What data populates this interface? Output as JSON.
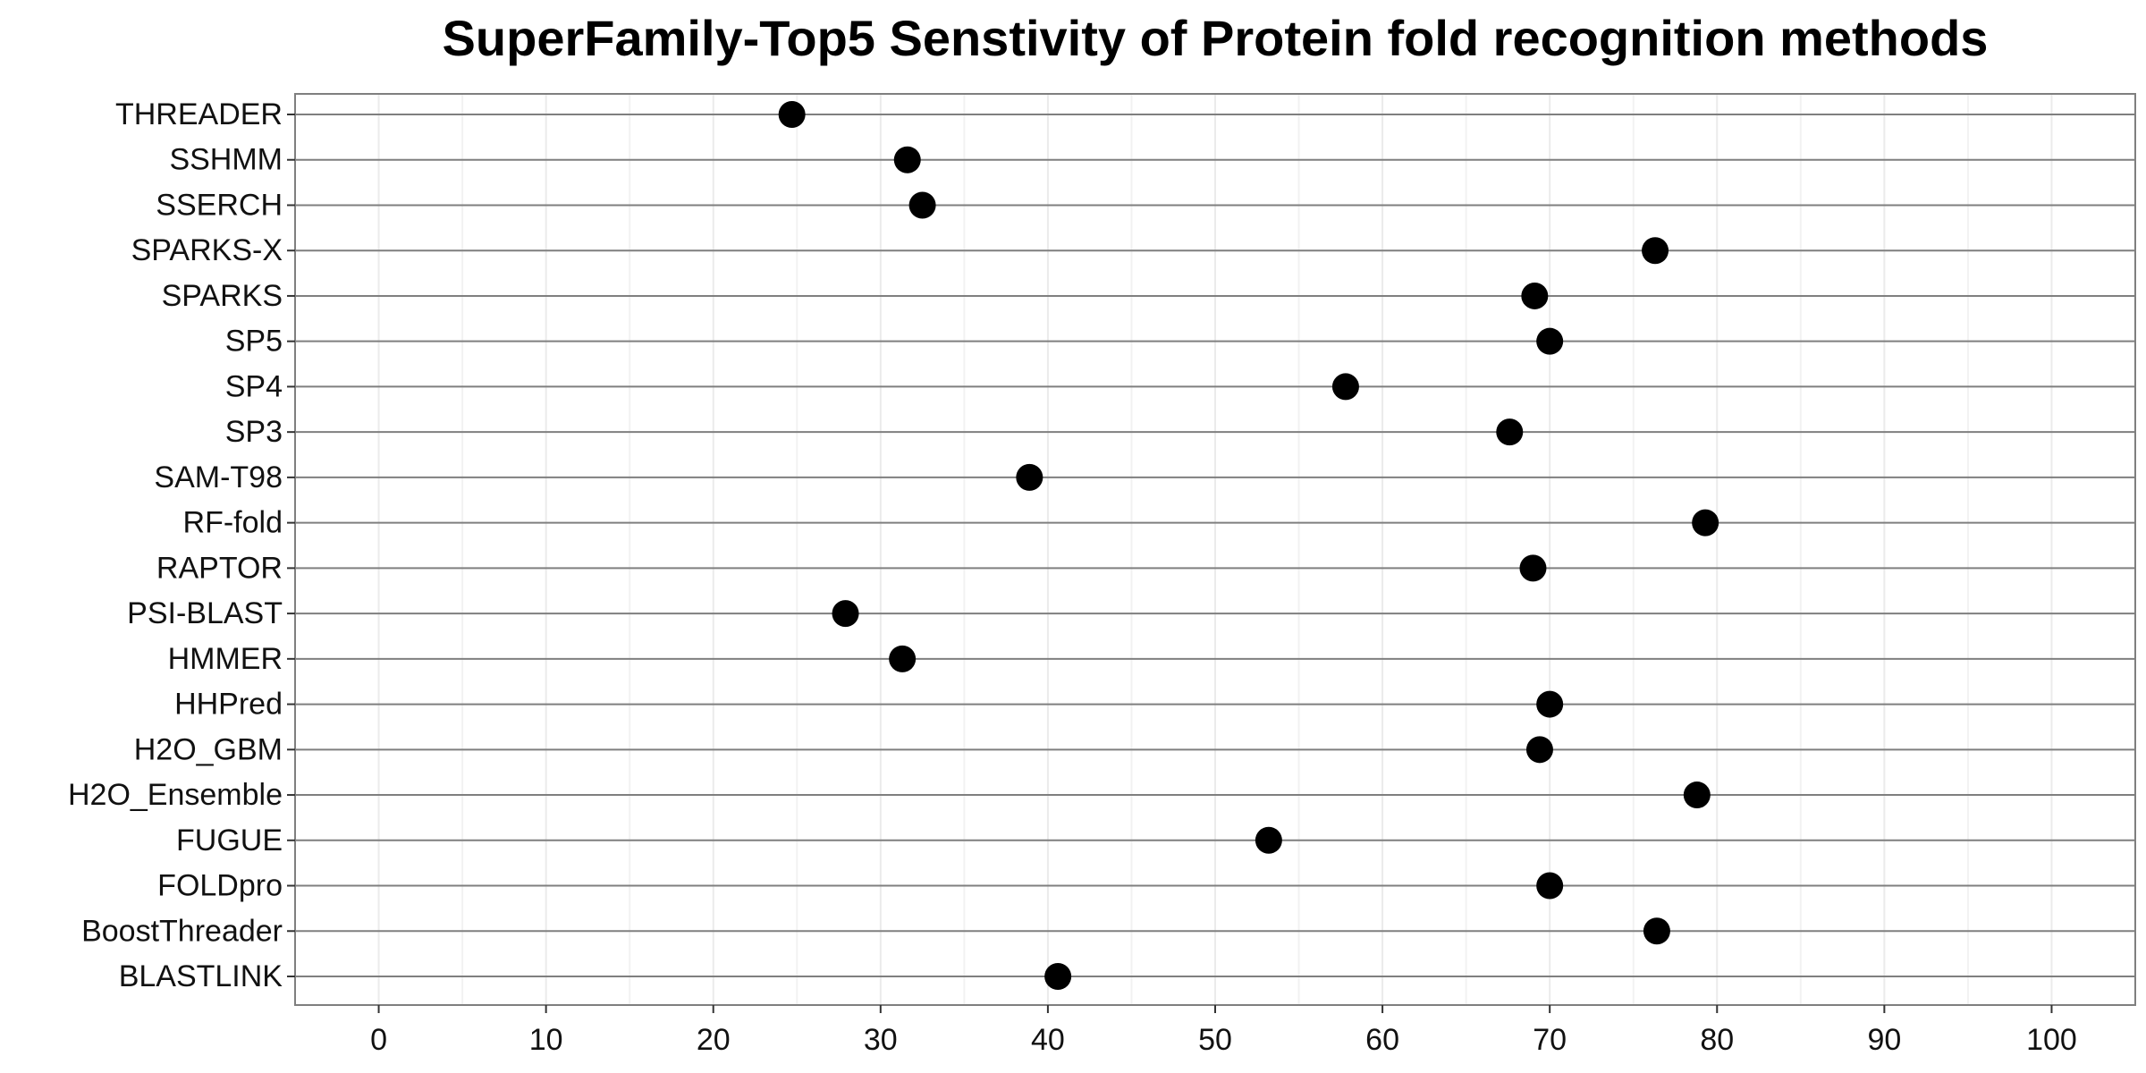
{
  "chart_data": {
    "type": "scatter",
    "title": "SuperFamily-Top5 Senstivity of Protein fold recognition methods",
    "xlabel": "",
    "ylabel": "",
    "xlim": [
      -5,
      105
    ],
    "xticks": [
      0,
      10,
      20,
      30,
      40,
      50,
      60,
      70,
      80,
      90,
      100
    ],
    "grid": true,
    "categories": [
      "THREADER",
      "SSHMM",
      "SSERCH",
      "SPARKS-X",
      "SPARKS",
      "SP5",
      "SP4",
      "SP3",
      "SAM-T98",
      "RF-fold",
      "RAPTOR",
      "PSI-BLAST",
      "HMMER",
      "HHPred",
      "H2O_GBM",
      "H2O_Ensemble",
      "FUGUE",
      "FOLDpro",
      "BoostThreader",
      "BLASTLINK"
    ],
    "values": [
      24.7,
      31.6,
      32.5,
      76.3,
      69.1,
      70.0,
      57.8,
      67.6,
      38.9,
      79.3,
      69.0,
      27.9,
      31.3,
      70.0,
      69.4,
      78.8,
      53.2,
      70.0,
      76.4,
      40.6
    ],
    "point_color": "#000000",
    "gridline_color": "#7f7f7f"
  }
}
